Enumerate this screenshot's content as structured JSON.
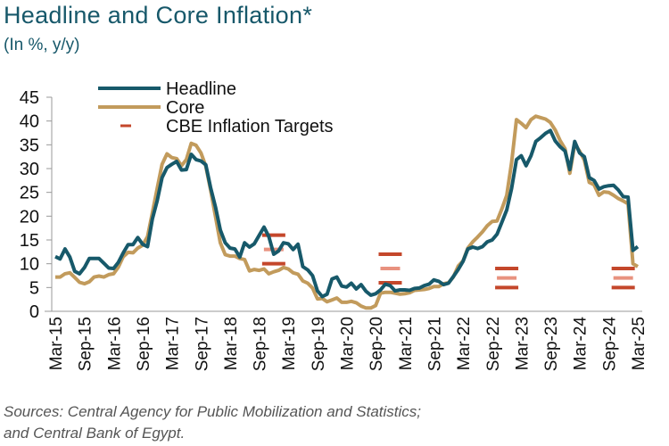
{
  "title": "Headline and Core Inflation*",
  "subtitle": "(In %, y/y)",
  "sources": [
    "Sources: Central Agency for Public Mobilization and Statistics;",
    "and Central Bank of Egypt."
  ],
  "chart_data": {
    "type": "line",
    "start_month": "Mar-15",
    "end_month": "Mar-25",
    "frequency": "monthly",
    "ylim": [
      0,
      45
    ],
    "yticks": [
      0,
      5,
      10,
      15,
      20,
      25,
      30,
      35,
      40,
      45
    ],
    "xtick_labels": [
      "Mar-15",
      "Sep-15",
      "Mar-16",
      "Sep-16",
      "Mar-17",
      "Sep-17",
      "Mar-18",
      "Sep-18",
      "Mar-19",
      "Sep-19",
      "Mar-20",
      "Sep-20",
      "Mar-21",
      "Sep-21",
      "Mar-22",
      "Sep-22",
      "Mar-23",
      "Sep-23",
      "Mar-24",
      "Sep-24",
      "Mar-25"
    ],
    "grid": false,
    "legend_position": "top-left",
    "series": [
      {
        "name": "Headline",
        "color": "#17596a",
        "values": [
          11.5,
          11.0,
          13.1,
          11.4,
          8.4,
          7.9,
          9.2,
          11.1,
          11.1,
          11.1,
          10.1,
          9.1,
          9.0,
          10.3,
          12.3,
          14.0,
          14.0,
          15.5,
          14.1,
          13.6,
          19.4,
          23.3,
          28.1,
          30.2,
          30.9,
          31.5,
          29.7,
          29.8,
          33.0,
          31.9,
          31.6,
          30.8,
          26.0,
          21.9,
          17.1,
          14.4,
          13.3,
          13.1,
          11.4,
          14.4,
          13.5,
          14.2,
          16.0,
          17.7,
          15.7,
          12.0,
          12.7,
          14.4,
          14.2,
          13.0,
          14.1,
          9.4,
          8.7,
          7.5,
          4.3,
          3.1,
          3.6,
          6.8,
          7.2,
          5.3,
          5.1,
          5.9,
          4.7,
          5.6,
          4.2,
          3.4,
          3.7,
          4.5,
          5.7,
          5.4,
          4.3,
          4.5,
          4.5,
          4.4,
          4.8,
          4.9,
          5.4,
          5.7,
          6.6,
          6.3,
          5.6,
          5.9,
          7.3,
          8.8,
          10.5,
          13.1,
          13.5,
          13.2,
          13.6,
          14.6,
          15.0,
          16.2,
          18.7,
          21.3,
          25.8,
          31.9,
          32.7,
          30.6,
          32.7,
          35.7,
          36.5,
          37.4,
          38.0,
          35.8,
          34.6,
          33.7,
          29.8,
          35.7,
          33.3,
          32.5,
          28.1,
          27.5,
          25.7,
          26.2,
          26.4,
          26.5,
          25.5,
          24.1,
          24.0,
          12.8,
          13.6
        ]
      },
      {
        "name": "Core",
        "color": "#c29b5c",
        "values": [
          7.2,
          7.2,
          7.9,
          8.1,
          7.1,
          6.1,
          5.8,
          6.2,
          7.2,
          7.4,
          7.2,
          7.7,
          7.9,
          9.3,
          11.5,
          12.4,
          12.3,
          13.3,
          13.9,
          15.7,
          20.7,
          25.9,
          30.9,
          33.1,
          32.3,
          32.1,
          30.6,
          31.9,
          35.3,
          34.9,
          33.3,
          30.5,
          25.5,
          19.9,
          14.4,
          11.9,
          11.6,
          11.6,
          11.1,
          10.9,
          8.5,
          8.8,
          8.6,
          8.9,
          7.9,
          8.3,
          8.6,
          9.2,
          8.9,
          8.1,
          7.8,
          6.4,
          5.9,
          4.9,
          2.6,
          2.7,
          2.0,
          2.4,
          2.8,
          1.9,
          1.9,
          2.1,
          1.8,
          1.1,
          0.7,
          0.7,
          1.2,
          3.8,
          4.0,
          4.0,
          3.8,
          3.6,
          3.7,
          3.9,
          4.4,
          4.5,
          4.6,
          4.8,
          5.2,
          5.2,
          5.8,
          6.0,
          7.2,
          9.5,
          10.6,
          13.3,
          14.6,
          15.6,
          16.7,
          18.0,
          18.9,
          19.0,
          21.5,
          24.4,
          31.2,
          40.3,
          39.5,
          38.6,
          40.3,
          41.0,
          40.7,
          40.4,
          39.7,
          38.1,
          35.9,
          34.2,
          29.0,
          35.1,
          33.7,
          31.8,
          27.1,
          26.6,
          24.4,
          25.1,
          25.0,
          24.4,
          23.7,
          23.2,
          22.6,
          10.0,
          9.4
        ]
      }
    ],
    "targets": {
      "name": "CBE Inflation Targets",
      "color": "#c4472b",
      "midpoint_color": "#e8927f",
      "items": [
        {
          "period": "Q4-2018",
          "center": 13,
          "band": 3
        },
        {
          "period": "Q4-2020",
          "center": 9,
          "band": 3
        },
        {
          "period": "Q4-2022",
          "center": 7,
          "band": 2
        },
        {
          "period": "Q4-2024",
          "center": 7,
          "band": 2
        }
      ]
    }
  }
}
